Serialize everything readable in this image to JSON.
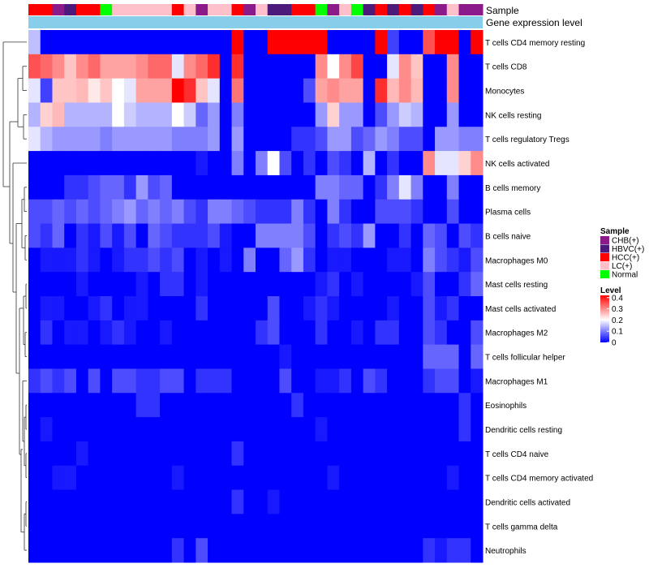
{
  "chart_data": {
    "type": "heatmap",
    "title": "",
    "annotation_tracks": [
      "Sample",
      "Gene expression level"
    ],
    "row_labels": [
      "T cells CD4 memory resting",
      "T cells CD8",
      "Monocytes",
      "NK cells resting",
      "T cells regulatory  Tregs",
      "NK cells activated",
      "B cells memory",
      "Plasma cells",
      "B cells naive",
      "Macrophages M0",
      "Mast cells resting",
      "Mast cells activated",
      "Macrophages M2",
      "T cells follicular helper",
      "Macrophages M1",
      "Eosinophils",
      "Dendritic cells resting",
      "T cells CD4 naive",
      "T cells CD4 memory activated",
      "Dendritic cells activated",
      "T cells gamma delta",
      "Neutrophils"
    ],
    "sample_groups": [
      "CHB(+)",
      "HBVC(+)",
      "HCC(+)",
      "LC(+)",
      "Normal"
    ],
    "sample_colors": {
      "CHB(+)": "#8b1a8b",
      "HBVC(+)": "#4b1a7a",
      "HCC(+)": "#ff0000",
      "LC(+)": "#ffc0cb",
      "Normal": "#00ff00"
    },
    "sample_annotation": [
      "HCC(+)",
      "HCC(+)",
      "CHB(+)",
      "HBVC(+)",
      "HCC(+)",
      "HCC(+)",
      "Normal",
      "LC(+)",
      "LC(+)",
      "LC(+)",
      "LC(+)",
      "LC(+)",
      "HCC(+)",
      "LC(+)",
      "CHB(+)",
      "LC(+)",
      "LC(+)",
      "HCC(+)",
      "CHB(+)",
      "LC(+)",
      "HBVC(+)",
      "HBVC(+)",
      "HCC(+)",
      "HCC(+)",
      "Normal",
      "CHB(+)",
      "LC(+)",
      "Normal",
      "HBVC(+)",
      "HCC(+)",
      "HBVC(+)",
      "HCC(+)",
      "HBVC(+)",
      "HCC(+)",
      "CHB(+)",
      "LC(+)",
      "CHB(+)",
      "CHB(+)"
    ],
    "gene_expression_track_color": "#87ceeb",
    "legend": {
      "sample_title": "Sample",
      "level_title": "Level",
      "level_ticks": [
        "0.4",
        "0.3",
        "0.2",
        "0.1",
        "0"
      ],
      "level_tick_values": [
        0.4,
        0.3,
        0.2,
        0.1,
        0
      ],
      "level_range": [
        0,
        0.42
      ],
      "position": "right"
    },
    "color_scale": {
      "low": "#0000ff",
      "mid": "#ffffff",
      "high": "#ff0000",
      "min": 0,
      "mid_value": 0.2,
      "max": 0.42
    },
    "values": [
      [
        0.15,
        0.0,
        0.0,
        0.0,
        0.0,
        0.0,
        0.0,
        0.0,
        0.0,
        0.0,
        0.0,
        0.0,
        0.0,
        0.0,
        0.0,
        0.0,
        0.0,
        0.42,
        0.0,
        0.0,
        0.42,
        0.42,
        0.42,
        0.42,
        0.42,
        0.0,
        0.0,
        0.0,
        0.0,
        0.42,
        0.05,
        0.0,
        0.0,
        0.35,
        0.42,
        0.42,
        0.0,
        0.42
      ],
      [
        0.35,
        0.33,
        0.3,
        0.25,
        0.3,
        0.33,
        0.28,
        0.28,
        0.28,
        0.3,
        0.33,
        0.33,
        0.18,
        0.3,
        0.33,
        0.38,
        0.0,
        0.38,
        0.0,
        0.0,
        0.0,
        0.0,
        0.0,
        0.0,
        0.3,
        0.2,
        0.3,
        0.36,
        0.0,
        0.0,
        0.18,
        0.3,
        0.25,
        0.0,
        0.0,
        0.3,
        0.0,
        0.0
      ],
      [
        0.18,
        0.05,
        0.25,
        0.25,
        0.26,
        0.22,
        0.25,
        0.2,
        0.18,
        0.28,
        0.28,
        0.28,
        0.42,
        0.38,
        0.25,
        0.18,
        0.0,
        0.32,
        0.0,
        0.0,
        0.0,
        0.0,
        0.0,
        0.06,
        0.28,
        0.3,
        0.28,
        0.28,
        0.0,
        0.38,
        0.26,
        0.3,
        0.26,
        0.0,
        0.0,
        0.3,
        0.0,
        0.0
      ],
      [
        0.14,
        0.24,
        0.26,
        0.14,
        0.14,
        0.14,
        0.14,
        0.2,
        0.16,
        0.14,
        0.14,
        0.14,
        0.2,
        0.16,
        0.08,
        0.12,
        0.0,
        0.1,
        0.0,
        0.0,
        0.0,
        0.0,
        0.0,
        0.0,
        0.12,
        0.24,
        0.12,
        0.12,
        0.0,
        0.06,
        0.12,
        0.16,
        0.14,
        0.0,
        0.0,
        0.12,
        0.0,
        0.0
      ],
      [
        0.18,
        0.14,
        0.12,
        0.12,
        0.12,
        0.12,
        0.1,
        0.12,
        0.12,
        0.12,
        0.12,
        0.12,
        0.1,
        0.1,
        0.1,
        0.12,
        0.0,
        0.12,
        0.0,
        0.0,
        0.0,
        0.0,
        0.04,
        0.04,
        0.06,
        0.12,
        0.12,
        0.06,
        0.08,
        0.12,
        0.1,
        0.06,
        0.06,
        0.0,
        0.12,
        0.12,
        0.1,
        0.1
      ],
      [
        0.0,
        0.0,
        0.0,
        0.0,
        0.0,
        0.0,
        0.0,
        0.0,
        0.0,
        0.0,
        0.0,
        0.0,
        0.0,
        0.0,
        0.02,
        0.0,
        0.0,
        0.1,
        0.0,
        0.1,
        0.2,
        0.06,
        0.0,
        0.04,
        0.0,
        0.06,
        0.04,
        0.0,
        0.14,
        0.0,
        0.04,
        0.0,
        0.0,
        0.3,
        0.18,
        0.18,
        0.24,
        0.3
      ],
      [
        0.0,
        0.0,
        0.0,
        0.04,
        0.04,
        0.06,
        0.08,
        0.08,
        0.04,
        0.12,
        0.06,
        0.08,
        0.0,
        0.0,
        0.0,
        0.0,
        0.0,
        0.0,
        0.0,
        0.0,
        0.0,
        0.0,
        0.0,
        0.0,
        0.1,
        0.1,
        0.08,
        0.08,
        0.0,
        0.04,
        0.1,
        0.18,
        0.1,
        0.0,
        0.0,
        0.1,
        0.0,
        0.0
      ],
      [
        0.06,
        0.06,
        0.08,
        0.06,
        0.08,
        0.06,
        0.08,
        0.1,
        0.12,
        0.08,
        0.1,
        0.08,
        0.1,
        0.06,
        0.04,
        0.1,
        0.1,
        0.08,
        0.06,
        0.04,
        0.04,
        0.04,
        0.1,
        0.04,
        0.0,
        0.1,
        0.04,
        0.0,
        0.0,
        0.06,
        0.06,
        0.06,
        0.04,
        0.0,
        0.0,
        0.06,
        0.0,
        0.0
      ],
      [
        0.06,
        0.04,
        0.08,
        0.0,
        0.04,
        0.02,
        0.06,
        0.02,
        0.06,
        0.0,
        0.08,
        0.06,
        0.04,
        0.04,
        0.04,
        0.06,
        0.02,
        0.0,
        0.0,
        0.1,
        0.1,
        0.1,
        0.1,
        0.06,
        0.0,
        0.04,
        0.06,
        0.04,
        0.12,
        0.0,
        0.0,
        0.04,
        0.0,
        0.08,
        0.06,
        0.0,
        0.06,
        0.04
      ],
      [
        0.0,
        0.02,
        0.02,
        0.02,
        0.04,
        0.02,
        0.0,
        0.02,
        0.04,
        0.04,
        0.06,
        0.04,
        0.06,
        0.0,
        0.02,
        0.0,
        0.02,
        0.0,
        0.1,
        0.0,
        0.0,
        0.08,
        0.12,
        0.04,
        0.0,
        0.02,
        0.02,
        0.0,
        0.0,
        0.0,
        0.02,
        0.02,
        0.0,
        0.1,
        0.06,
        0.04,
        0.02,
        0.06
      ],
      [
        0.0,
        0.0,
        0.0,
        0.0,
        0.02,
        0.0,
        0.0,
        0.0,
        0.0,
        0.02,
        0.0,
        0.04,
        0.04,
        0.0,
        0.02,
        0.0,
        0.0,
        0.0,
        0.0,
        0.0,
        0.0,
        0.0,
        0.0,
        0.0,
        0.02,
        0.04,
        0.0,
        0.02,
        0.0,
        0.0,
        0.0,
        0.0,
        0.02,
        0.06,
        0.0,
        0.0,
        0.04,
        0.08
      ],
      [
        0.0,
        0.02,
        0.02,
        0.0,
        0.0,
        0.02,
        0.04,
        0.0,
        0.02,
        0.02,
        0.0,
        0.0,
        0.0,
        0.0,
        0.04,
        0.0,
        0.0,
        0.0,
        0.0,
        0.0,
        0.06,
        0.0,
        0.0,
        0.02,
        0.04,
        0.02,
        0.0,
        0.0,
        0.0,
        0.0,
        0.02,
        0.0,
        0.0,
        0.06,
        0.02,
        0.04,
        0.0,
        0.0
      ],
      [
        0.0,
        0.04,
        0.0,
        0.02,
        0.02,
        0.0,
        0.02,
        0.04,
        0.02,
        0.0,
        0.0,
        0.02,
        0.0,
        0.0,
        0.0,
        0.0,
        0.0,
        0.0,
        0.0,
        0.04,
        0.06,
        0.0,
        0.0,
        0.0,
        0.04,
        0.0,
        0.0,
        0.02,
        0.0,
        0.04,
        0.04,
        0.0,
        0.0,
        0.06,
        0.04,
        0.0,
        0.0,
        0.06
      ],
      [
        0.0,
        0.0,
        0.0,
        0.0,
        0.0,
        0.0,
        0.0,
        0.0,
        0.0,
        0.0,
        0.0,
        0.0,
        0.0,
        0.0,
        0.0,
        0.0,
        0.0,
        0.0,
        0.0,
        0.0,
        0.0,
        0.02,
        0.0,
        0.0,
        0.0,
        0.0,
        0.0,
        0.0,
        0.0,
        0.0,
        0.0,
        0.0,
        0.0,
        0.08,
        0.08,
        0.08,
        0.0,
        0.08
      ],
      [
        0.04,
        0.06,
        0.04,
        0.06,
        0.0,
        0.06,
        0.0,
        0.06,
        0.06,
        0.04,
        0.04,
        0.06,
        0.06,
        0.0,
        0.04,
        0.04,
        0.04,
        0.0,
        0.0,
        0.0,
        0.0,
        0.06,
        0.0,
        0.0,
        0.02,
        0.02,
        0.04,
        0.0,
        0.06,
        0.04,
        0.0,
        0.0,
        0.0,
        0.04,
        0.06,
        0.06,
        0.0,
        0.02
      ],
      [
        0.0,
        0.0,
        0.0,
        0.0,
        0.0,
        0.0,
        0.0,
        0.0,
        0.0,
        0.04,
        0.04,
        0.0,
        0.0,
        0.0,
        0.0,
        0.0,
        0.0,
        0.0,
        0.0,
        0.0,
        0.0,
        0.0,
        0.04,
        0.0,
        0.0,
        0.0,
        0.0,
        0.0,
        0.0,
        0.0,
        0.0,
        0.0,
        0.0,
        0.0,
        0.0,
        0.0,
        0.04,
        0.0
      ],
      [
        0.0,
        0.02,
        0.0,
        0.0,
        0.0,
        0.0,
        0.0,
        0.0,
        0.0,
        0.0,
        0.0,
        0.0,
        0.0,
        0.0,
        0.0,
        0.0,
        0.0,
        0.0,
        0.0,
        0.0,
        0.0,
        0.0,
        0.0,
        0.0,
        0.02,
        0.0,
        0.0,
        0.0,
        0.0,
        0.0,
        0.0,
        0.0,
        0.0,
        0.0,
        0.0,
        0.0,
        0.04,
        0.0
      ],
      [
        0.0,
        0.0,
        0.0,
        0.0,
        0.02,
        0.0,
        0.0,
        0.0,
        0.0,
        0.0,
        0.0,
        0.0,
        0.0,
        0.0,
        0.0,
        0.0,
        0.0,
        0.04,
        0.0,
        0.0,
        0.0,
        0.0,
        0.0,
        0.0,
        0.0,
        0.0,
        0.0,
        0.0,
        0.0,
        0.0,
        0.0,
        0.0,
        0.0,
        0.0,
        0.0,
        0.0,
        0.0,
        0.0
      ],
      [
        0.0,
        0.0,
        0.02,
        0.02,
        0.0,
        0.0,
        0.0,
        0.0,
        0.0,
        0.0,
        0.0,
        0.0,
        0.02,
        0.0,
        0.0,
        0.0,
        0.0,
        0.0,
        0.0,
        0.0,
        0.0,
        0.0,
        0.0,
        0.0,
        0.0,
        0.02,
        0.0,
        0.0,
        0.0,
        0.0,
        0.0,
        0.0,
        0.0,
        0.0,
        0.0,
        0.02,
        0.0,
        0.0
      ],
      [
        0.0,
        0.0,
        0.0,
        0.0,
        0.0,
        0.0,
        0.0,
        0.0,
        0.0,
        0.0,
        0.0,
        0.0,
        0.0,
        0.0,
        0.0,
        0.0,
        0.0,
        0.04,
        0.0,
        0.0,
        0.02,
        0.0,
        0.0,
        0.0,
        0.0,
        0.0,
        0.0,
        0.0,
        0.0,
        0.0,
        0.0,
        0.0,
        0.0,
        0.0,
        0.0,
        0.0,
        0.0,
        0.0
      ],
      [
        0.0,
        0.0,
        0.0,
        0.0,
        0.0,
        0.0,
        0.0,
        0.0,
        0.0,
        0.0,
        0.0,
        0.0,
        0.0,
        0.0,
        0.0,
        0.0,
        0.0,
        0.0,
        0.0,
        0.0,
        0.0,
        0.0,
        0.0,
        0.0,
        0.0,
        0.0,
        0.0,
        0.0,
        0.0,
        0.0,
        0.0,
        0.0,
        0.0,
        0.0,
        0.0,
        0.0,
        0.0,
        0.0
      ],
      [
        0.0,
        0.0,
        0.0,
        0.0,
        0.0,
        0.0,
        0.0,
        0.0,
        0.0,
        0.0,
        0.0,
        0.0,
        0.04,
        0.0,
        0.06,
        0.0,
        0.0,
        0.0,
        0.0,
        0.0,
        0.0,
        0.0,
        0.0,
        0.0,
        0.0,
        0.0,
        0.0,
        0.0,
        0.0,
        0.0,
        0.0,
        0.0,
        0.0,
        0.04,
        0.02,
        0.04,
        0.04,
        0.0
      ]
    ]
  }
}
